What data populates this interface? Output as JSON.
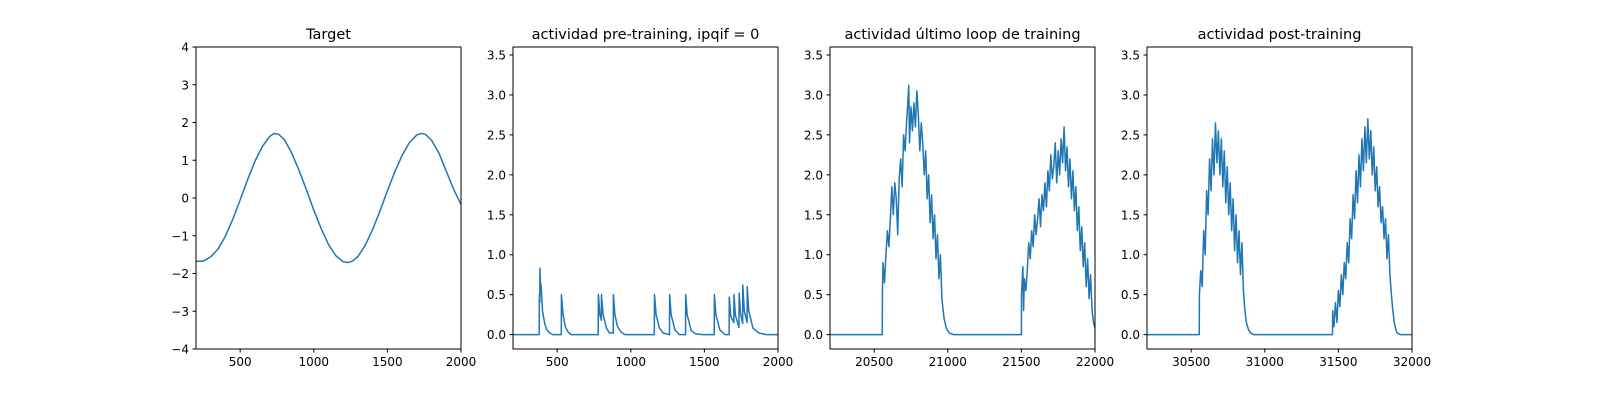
{
  "colors": {
    "series": "#1f77b4",
    "axes": "#000000",
    "background": "#ffffff"
  },
  "chart_data": [
    {
      "type": "line",
      "title": "Target",
      "xlim": [
        200,
        2000
      ],
      "ylim": [
        -4,
        4
      ],
      "xticks": [
        500,
        1000,
        1500,
        2000
      ],
      "yticks": [
        -4,
        -3,
        -2,
        -1,
        0,
        1,
        2,
        3,
        4
      ],
      "xticklabels": [
        "500",
        "1000",
        "1500",
        "2000"
      ],
      "yticklabels": [
        "−4",
        "−3",
        "−2",
        "−1",
        "0",
        "1",
        "2",
        "3",
        "4"
      ],
      "series": [
        {
          "x": [
            200,
            250,
            300,
            350,
            400,
            450,
            500,
            550,
            600,
            650,
            700,
            730,
            760,
            800,
            850,
            900,
            950,
            1000,
            1050,
            1100,
            1150,
            1200,
            1230,
            1260,
            1300,
            1350,
            1400,
            1450,
            1500,
            1550,
            1600,
            1650,
            1700,
            1730,
            1760,
            1800,
            1850,
            1900,
            1950,
            2000
          ],
          "y": [
            -1.68,
            -1.67,
            -1.56,
            -1.35,
            -1.01,
            -0.56,
            -0.05,
            0.48,
            0.97,
            1.36,
            1.63,
            1.71,
            1.69,
            1.55,
            1.19,
            0.73,
            0.22,
            -0.32,
            -0.81,
            -1.23,
            -1.53,
            -1.69,
            -1.71,
            -1.68,
            -1.55,
            -1.25,
            -0.83,
            -0.34,
            0.19,
            0.69,
            1.13,
            1.47,
            1.67,
            1.71,
            1.68,
            1.53,
            1.19,
            0.71,
            0.23,
            -0.17
          ]
        }
      ]
    },
    {
      "type": "line",
      "title": "actividad pre-training, ipqif = 0",
      "xlim": [
        200,
        2000
      ],
      "ylim": [
        -0.18,
        3.6
      ],
      "xticks": [
        500,
        1000,
        1500,
        2000
      ],
      "yticks": [
        0.0,
        0.5,
        1.0,
        1.5,
        2.0,
        2.5,
        3.0,
        3.5
      ],
      "xticklabels": [
        "500",
        "1000",
        "1500",
        "2000"
      ],
      "yticklabels": [
        "0.0",
        "0.5",
        "1.0",
        "1.5",
        "2.0",
        "2.5",
        "3.0",
        "3.5"
      ],
      "series": [
        {
          "x": [
            200,
            378,
            379,
            382,
            383,
            390,
            391,
            400,
            415,
            430,
            450,
            470,
            528,
            529,
            540,
            555,
            575,
            595,
            779,
            780,
            790,
            800,
            801,
            812,
            835,
            855,
            881,
            882,
            892,
            910,
            935,
            960,
            1160,
            1161,
            1172,
            1195,
            1220,
            1263,
            1264,
            1274,
            1300,
            1330,
            1372,
            1373,
            1383,
            1410,
            1440,
            1490,
            1567,
            1568,
            1578,
            1605,
            1640,
            1668,
            1669,
            1679,
            1700,
            1701,
            1711,
            1735,
            1736,
            1746,
            1760,
            1761,
            1771,
            1790,
            1791,
            1801,
            1830,
            1870,
            1920,
            2000
          ],
          "y": [
            0,
            0,
            0.5,
            0.4,
            0.83,
            0.5,
            0.62,
            0.3,
            0.14,
            0.06,
            0.02,
            0,
            0,
            0.5,
            0.25,
            0.1,
            0.03,
            0,
            0,
            0.5,
            0.25,
            0.18,
            0.5,
            0.25,
            0.08,
            0.02,
            0.02,
            0.5,
            0.25,
            0.1,
            0.03,
            0,
            0,
            0.5,
            0.25,
            0.08,
            0.02,
            0,
            0.5,
            0.25,
            0.06,
            0,
            0,
            0.5,
            0.25,
            0.05,
            0.01,
            0,
            0,
            0.5,
            0.25,
            0.06,
            0,
            0,
            0.47,
            0.23,
            0.15,
            0.5,
            0.24,
            0.09,
            0.52,
            0.26,
            0.14,
            0.62,
            0.3,
            0.15,
            0.6,
            0.3,
            0.08,
            0.02,
            0,
            0
          ]
        }
      ]
    },
    {
      "type": "line",
      "title": "actividad último loop de training",
      "xlim": [
        20200,
        22000
      ],
      "ylim": [
        -0.18,
        3.6
      ],
      "xticks": [
        20500,
        21000,
        21500,
        22000
      ],
      "yticks": [
        0.0,
        0.5,
        1.0,
        1.5,
        2.0,
        2.5,
        3.0,
        3.5
      ],
      "xticklabels": [
        "20500",
        "21000",
        "21500",
        "22000"
      ],
      "yticklabels": [
        "0.0",
        "0.5",
        "1.0",
        "1.5",
        "2.0",
        "2.5",
        "3.0",
        "3.5"
      ],
      "series": [
        {
          "x": [
            20200,
            20555,
            20556,
            20560,
            20570,
            20580,
            20590,
            20600,
            20610,
            20620,
            20630,
            20640,
            20650,
            20660,
            20670,
            20680,
            20690,
            20700,
            20710,
            20720,
            20730,
            20735,
            20740,
            20750,
            20760,
            20770,
            20780,
            20790,
            20800,
            20810,
            20820,
            20830,
            20840,
            20850,
            20860,
            20870,
            20880,
            20890,
            20900,
            20910,
            20920,
            20930,
            20940,
            20950,
            20960,
            20975,
            20990,
            21010,
            21040,
            21080,
            21150,
            21250,
            21350,
            21450,
            21500,
            21501,
            21510,
            21515,
            21520,
            21530,
            21540,
            21550,
            21560,
            21570,
            21580,
            21590,
            21600,
            21610,
            21620,
            21630,
            21640,
            21650,
            21660,
            21670,
            21680,
            21690,
            21700,
            21710,
            21720,
            21730,
            21740,
            21750,
            21760,
            21770,
            21780,
            21790,
            21800,
            21810,
            21820,
            21830,
            21840,
            21850,
            21860,
            21870,
            21880,
            21890,
            21900,
            21910,
            21920,
            21930,
            21940,
            21950,
            21960,
            21970,
            21980,
            21990,
            22000
          ],
          "y": [
            0,
            0,
            0.5,
            0.9,
            0.65,
            1.0,
            1.3,
            1.1,
            1.45,
            1.85,
            1.5,
            1.9,
            1.7,
            1.25,
            1.95,
            2.2,
            1.85,
            2.5,
            2.3,
            2.65,
            2.95,
            3.12,
            2.4,
            2.85,
            2.55,
            2.9,
            2.6,
            3.05,
            2.75,
            2.3,
            2.65,
            2.4,
            2.0,
            2.3,
            1.7,
            2.0,
            1.4,
            1.75,
            1.2,
            1.5,
            0.95,
            1.25,
            0.7,
            1.0,
            0.45,
            0.2,
            0.08,
            0.02,
            0,
            0,
            0,
            0,
            0,
            0,
            0,
            0.5,
            0.85,
            0.3,
            0.7,
            0.55,
            0.8,
            1.15,
            0.95,
            1.3,
            1.1,
            1.5,
            1.25,
            1.45,
            1.7,
            1.35,
            1.75,
            1.55,
            1.9,
            1.6,
            2.05,
            1.8,
            2.25,
            1.95,
            2.1,
            2.4,
            1.9,
            2.3,
            2.0,
            2.45,
            2.15,
            2.6,
            2.05,
            2.35,
            1.85,
            2.2,
            1.7,
            2.05,
            1.55,
            1.85,
            1.3,
            1.6,
            1.05,
            1.35,
            0.85,
            1.15,
            0.6,
            0.95,
            0.45,
            0.75,
            0.3,
            0.15,
            0.08
          ]
        }
      ]
    },
    {
      "type": "line",
      "title": "actividad post-training",
      "xlim": [
        30200,
        32000
      ],
      "ylim": [
        -0.18,
        3.6
      ],
      "xticks": [
        30500,
        31000,
        31500,
        32000
      ],
      "yticks": [
        0.0,
        0.5,
        1.0,
        1.5,
        2.0,
        2.5,
        3.0,
        3.5
      ],
      "xticklabels": [
        "30500",
        "31000",
        "31500",
        "32000"
      ],
      "yticklabels": [
        "0.0",
        "0.5",
        "1.0",
        "1.5",
        "2.0",
        "2.5",
        "3.0",
        "3.5"
      ],
      "series": [
        {
          "x": [
            30200,
            30555,
            30556,
            30565,
            30575,
            30585,
            30595,
            30605,
            30615,
            30625,
            30635,
            30645,
            30655,
            30665,
            30675,
            30685,
            30695,
            30705,
            30715,
            30725,
            30735,
            30745,
            30755,
            30765,
            30775,
            30785,
            30795,
            30805,
            30815,
            30825,
            30835,
            30845,
            30855,
            30865,
            30875,
            30890,
            30905,
            30925,
            30960,
            31000,
            31100,
            31200,
            31300,
            31400,
            31460,
            31461,
            31470,
            31480,
            31490,
            31500,
            31510,
            31520,
            31530,
            31540,
            31550,
            31560,
            31570,
            31580,
            31590,
            31600,
            31610,
            31620,
            31630,
            31640,
            31650,
            31660,
            31670,
            31680,
            31690,
            31700,
            31710,
            31720,
            31730,
            31740,
            31750,
            31760,
            31770,
            31780,
            31790,
            31800,
            31810,
            31820,
            31830,
            31840,
            31850,
            31860,
            31870,
            31880,
            31890,
            31900,
            31920,
            31950,
            32000
          ],
          "y": [
            0,
            0,
            0.5,
            0.8,
            0.6,
            1.3,
            1.0,
            1.8,
            1.5,
            2.2,
            1.8,
            2.45,
            2.0,
            2.65,
            2.15,
            2.55,
            2.0,
            2.45,
            1.85,
            2.3,
            1.65,
            2.1,
            1.5,
            1.9,
            1.3,
            1.7,
            1.05,
            1.5,
            0.9,
            1.3,
            0.75,
            1.15,
            0.55,
            0.3,
            0.15,
            0.06,
            0.02,
            0,
            0,
            0,
            0,
            0,
            0,
            0,
            0,
            0.3,
            0.1,
            0.4,
            0.15,
            0.55,
            0.35,
            0.75,
            0.5,
            0.9,
            0.7,
            1.15,
            0.9,
            1.45,
            1.2,
            1.75,
            1.45,
            2.05,
            1.65,
            2.25,
            1.85,
            2.45,
            2.05,
            2.6,
            2.15,
            2.7,
            2.2,
            2.55,
            2.0,
            2.35,
            1.8,
            2.1,
            1.6,
            1.85,
            1.4,
            1.6,
            1.2,
            1.45,
            0.95,
            1.25,
            0.75,
            0.5,
            0.3,
            0.15,
            0.06,
            0.02,
            0,
            0,
            0
          ]
        }
      ]
    }
  ]
}
